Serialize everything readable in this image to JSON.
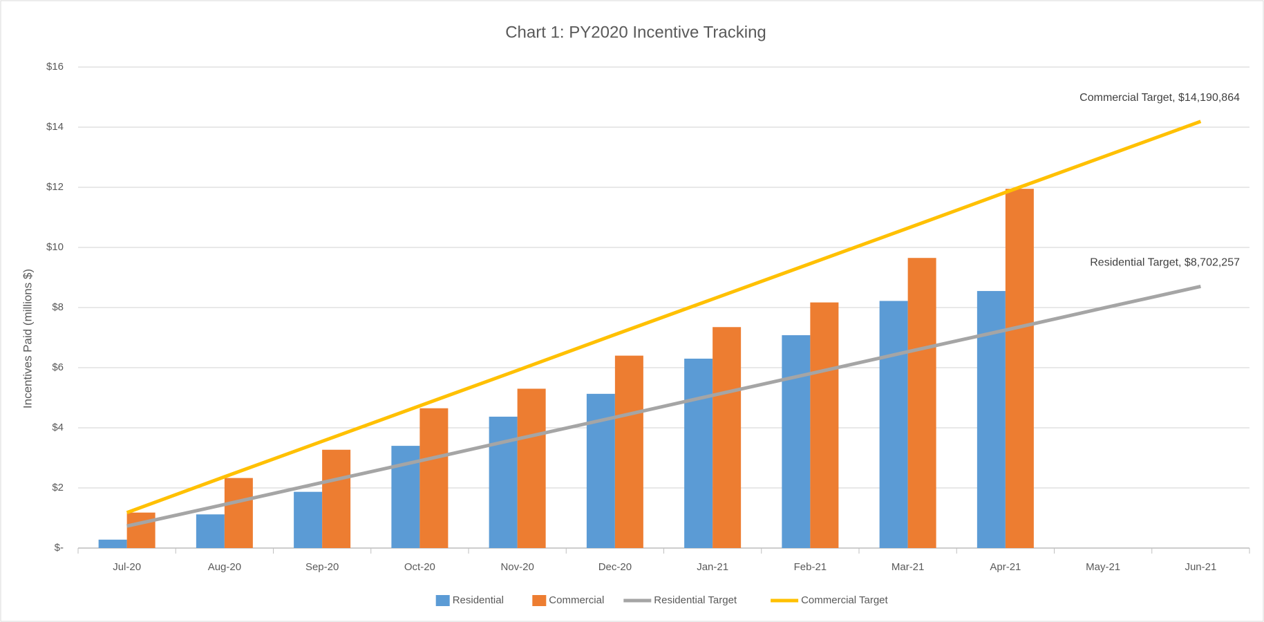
{
  "chart_data": {
    "type": "bar",
    "title": "Chart 1: PY2020 Incentive Tracking",
    "y_label": "Incentives Paid (millions $)",
    "categories": [
      "Jul-20",
      "Aug-20",
      "Sep-20",
      "Oct-20",
      "Nov-20",
      "Dec-20",
      "Jan-21",
      "Feb-21",
      "Mar-21",
      "Apr-21",
      "May-21",
      "Jun-21"
    ],
    "series": [
      {
        "name": "Residential",
        "type": "bar",
        "color": "#5b9bd5",
        "values": [
          0.28,
          1.12,
          1.87,
          3.4,
          4.37,
          5.13,
          6.3,
          7.08,
          8.22,
          8.55,
          null,
          null
        ]
      },
      {
        "name": "Commercial",
        "type": "bar",
        "color": "#ed7d31",
        "values": [
          1.18,
          2.33,
          3.27,
          4.65,
          5.3,
          6.4,
          7.35,
          8.17,
          9.65,
          11.95,
          null,
          null
        ]
      },
      {
        "name": "Residential Target",
        "type": "line",
        "color": "#a5a5a5",
        "values": [
          0.73,
          1.45,
          2.18,
          2.9,
          3.63,
          4.35,
          5.08,
          5.8,
          6.53,
          7.25,
          7.98,
          8.702257
        ],
        "end_label": "Residential Target, $8,702,257"
      },
      {
        "name": "Commercial Target",
        "type": "line",
        "color": "#ffc000",
        "values": [
          1.18,
          2.37,
          3.55,
          4.73,
          5.91,
          7.1,
          8.28,
          9.46,
          10.64,
          11.83,
          13.01,
          14.190864
        ],
        "end_label": "Commercial Target, $14,190,864"
      }
    ],
    "ylim": [
      0,
      16
    ],
    "yticks": [
      {
        "value": 0,
        "label": "$-"
      },
      {
        "value": 2,
        "label": "$2"
      },
      {
        "value": 4,
        "label": "$4"
      },
      {
        "value": 6,
        "label": "$6"
      },
      {
        "value": 8,
        "label": "$8"
      },
      {
        "value": 10,
        "label": "$10"
      },
      {
        "value": 12,
        "label": "$12"
      },
      {
        "value": 14,
        "label": "$14"
      },
      {
        "value": 16,
        "label": "$16"
      }
    ],
    "grid": true,
    "legend": "bottom"
  }
}
